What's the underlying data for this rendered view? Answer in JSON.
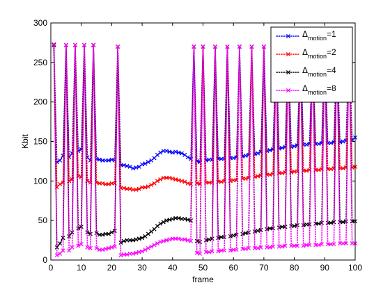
{
  "chart_data": {
    "type": "line",
    "xlabel": "frame",
    "ylabel": "Kbit",
    "xlim": [
      0,
      100
    ],
    "ylim": [
      0,
      300
    ],
    "xticks": [
      0,
      10,
      20,
      30,
      40,
      50,
      60,
      70,
      80,
      90,
      100
    ],
    "yticks": [
      0,
      50,
      100,
      150,
      200,
      250,
      300
    ],
    "legend_position": "top-right",
    "line_style": "dotted",
    "marker": "x",
    "x": [
      1,
      2,
      3,
      4,
      5,
      6,
      7,
      8,
      9,
      10,
      11,
      12,
      13,
      14,
      15,
      16,
      17,
      18,
      19,
      20,
      21,
      22,
      23,
      24,
      25,
      26,
      27,
      28,
      29,
      30,
      31,
      32,
      33,
      34,
      35,
      36,
      37,
      38,
      39,
      40,
      41,
      42,
      43,
      44,
      45,
      46,
      47,
      48,
      49,
      50,
      51,
      52,
      53,
      54,
      55,
      56,
      57,
      58,
      59,
      60,
      61,
      62,
      63,
      64,
      65,
      66,
      67,
      68,
      69,
      70,
      71,
      72,
      73,
      74,
      75,
      76,
      77,
      78,
      79,
      80,
      81,
      82,
      83,
      84,
      85,
      86,
      87,
      88,
      89,
      90,
      91,
      92,
      93,
      94,
      95,
      96,
      97,
      98,
      99,
      100
    ],
    "series": [
      {
        "name_main": "Δ",
        "name_sub": "motion",
        "name_suffix": "=1",
        "color": "#0000ff",
        "values": [
          272,
          124,
          126,
          132,
          272,
          130,
          135,
          272,
          138,
          140,
          272,
          130,
          126,
          272,
          128,
          127,
          126,
          126,
          126,
          127,
          126,
          270,
          120,
          120,
          119,
          118,
          116,
          117,
          118,
          121,
          122,
          124,
          126,
          129,
          133,
          136,
          138,
          138,
          137,
          136,
          137,
          136,
          135,
          133,
          130,
          128,
          270,
          125,
          124,
          270,
          126,
          127,
          127,
          270,
          128,
          128,
          128,
          270,
          129,
          129,
          130,
          270,
          131,
          132,
          133,
          270,
          134,
          135,
          137,
          270,
          138,
          139,
          140,
          270,
          141,
          142,
          143,
          270,
          143,
          144,
          145,
          270,
          146,
          146,
          147,
          270,
          147,
          147,
          148,
          270,
          148,
          148,
          149,
          270,
          149,
          150,
          151,
          270,
          152,
          155
        ]
      },
      {
        "name_main": "Δ",
        "name_sub": "motion",
        "name_suffix": "=2",
        "color": "#ff0000",
        "values": [
          272,
          92,
          96,
          98,
          272,
          100,
          102,
          272,
          106,
          105,
          272,
          100,
          98,
          272,
          98,
          97,
          97,
          96,
          96,
          97,
          97,
          270,
          91,
          91,
          90,
          90,
          89,
          89,
          90,
          92,
          92,
          93,
          95,
          97,
          100,
          102,
          104,
          104,
          104,
          103,
          102,
          101,
          100,
          99,
          97,
          96,
          270,
          97,
          96,
          270,
          98,
          98,
          98,
          270,
          99,
          99,
          100,
          270,
          100,
          101,
          101,
          270,
          103,
          103,
          104,
          270,
          105,
          106,
          107,
          270,
          108,
          108,
          109,
          270,
          110,
          110,
          111,
          270,
          111,
          112,
          112,
          270,
          113,
          113,
          114,
          270,
          114,
          114,
          115,
          270,
          115,
          115,
          116,
          270,
          116,
          116,
          117,
          270,
          117,
          118
        ]
      },
      {
        "name_main": "Δ",
        "name_sub": "motion",
        "name_suffix": "=4",
        "color": "#000000",
        "values": [
          272,
          16,
          21,
          28,
          272,
          30,
          35,
          272,
          40,
          42,
          272,
          35,
          33,
          272,
          34,
          32,
          32,
          33,
          33,
          35,
          37,
          270,
          22,
          24,
          25,
          25,
          25,
          26,
          27,
          28,
          30,
          33,
          36,
          39,
          43,
          46,
          48,
          50,
          51,
          52,
          53,
          53,
          52,
          52,
          51,
          50,
          270,
          24,
          23,
          270,
          25,
          26,
          27,
          270,
          28,
          29,
          29,
          270,
          30,
          31,
          32,
          270,
          33,
          34,
          35,
          270,
          36,
          37,
          38,
          270,
          39,
          40,
          40,
          270,
          41,
          42,
          42,
          270,
          43,
          43,
          44,
          270,
          44,
          45,
          45,
          270,
          46,
          46,
          47,
          270,
          47,
          47,
          48,
          270,
          48,
          48,
          49,
          270,
          49,
          49
        ]
      },
      {
        "name_main": "Δ",
        "name_sub": "motion",
        "name_suffix": "=8",
        "color": "#ff00ff",
        "values": [
          273,
          6,
          8,
          12,
          272,
          12,
          16,
          272,
          18,
          20,
          272,
          16,
          15,
          272,
          15,
          13,
          13,
          14,
          15,
          16,
          17,
          270,
          6,
          7,
          7,
          8,
          8,
          9,
          10,
          11,
          13,
          15,
          17,
          19,
          21,
          23,
          24,
          25,
          26,
          27,
          27,
          27,
          26,
          26,
          25,
          24,
          270,
          9,
          8,
          270,
          10,
          10,
          11,
          270,
          11,
          12,
          12,
          270,
          12,
          13,
          13,
          270,
          14,
          14,
          15,
          270,
          15,
          15,
          16,
          270,
          16,
          16,
          17,
          270,
          17,
          17,
          18,
          270,
          18,
          18,
          18,
          270,
          18,
          19,
          19,
          270,
          19,
          19,
          20,
          270,
          20,
          20,
          20,
          270,
          21,
          21,
          21,
          270,
          21,
          21
        ]
      }
    ]
  }
}
